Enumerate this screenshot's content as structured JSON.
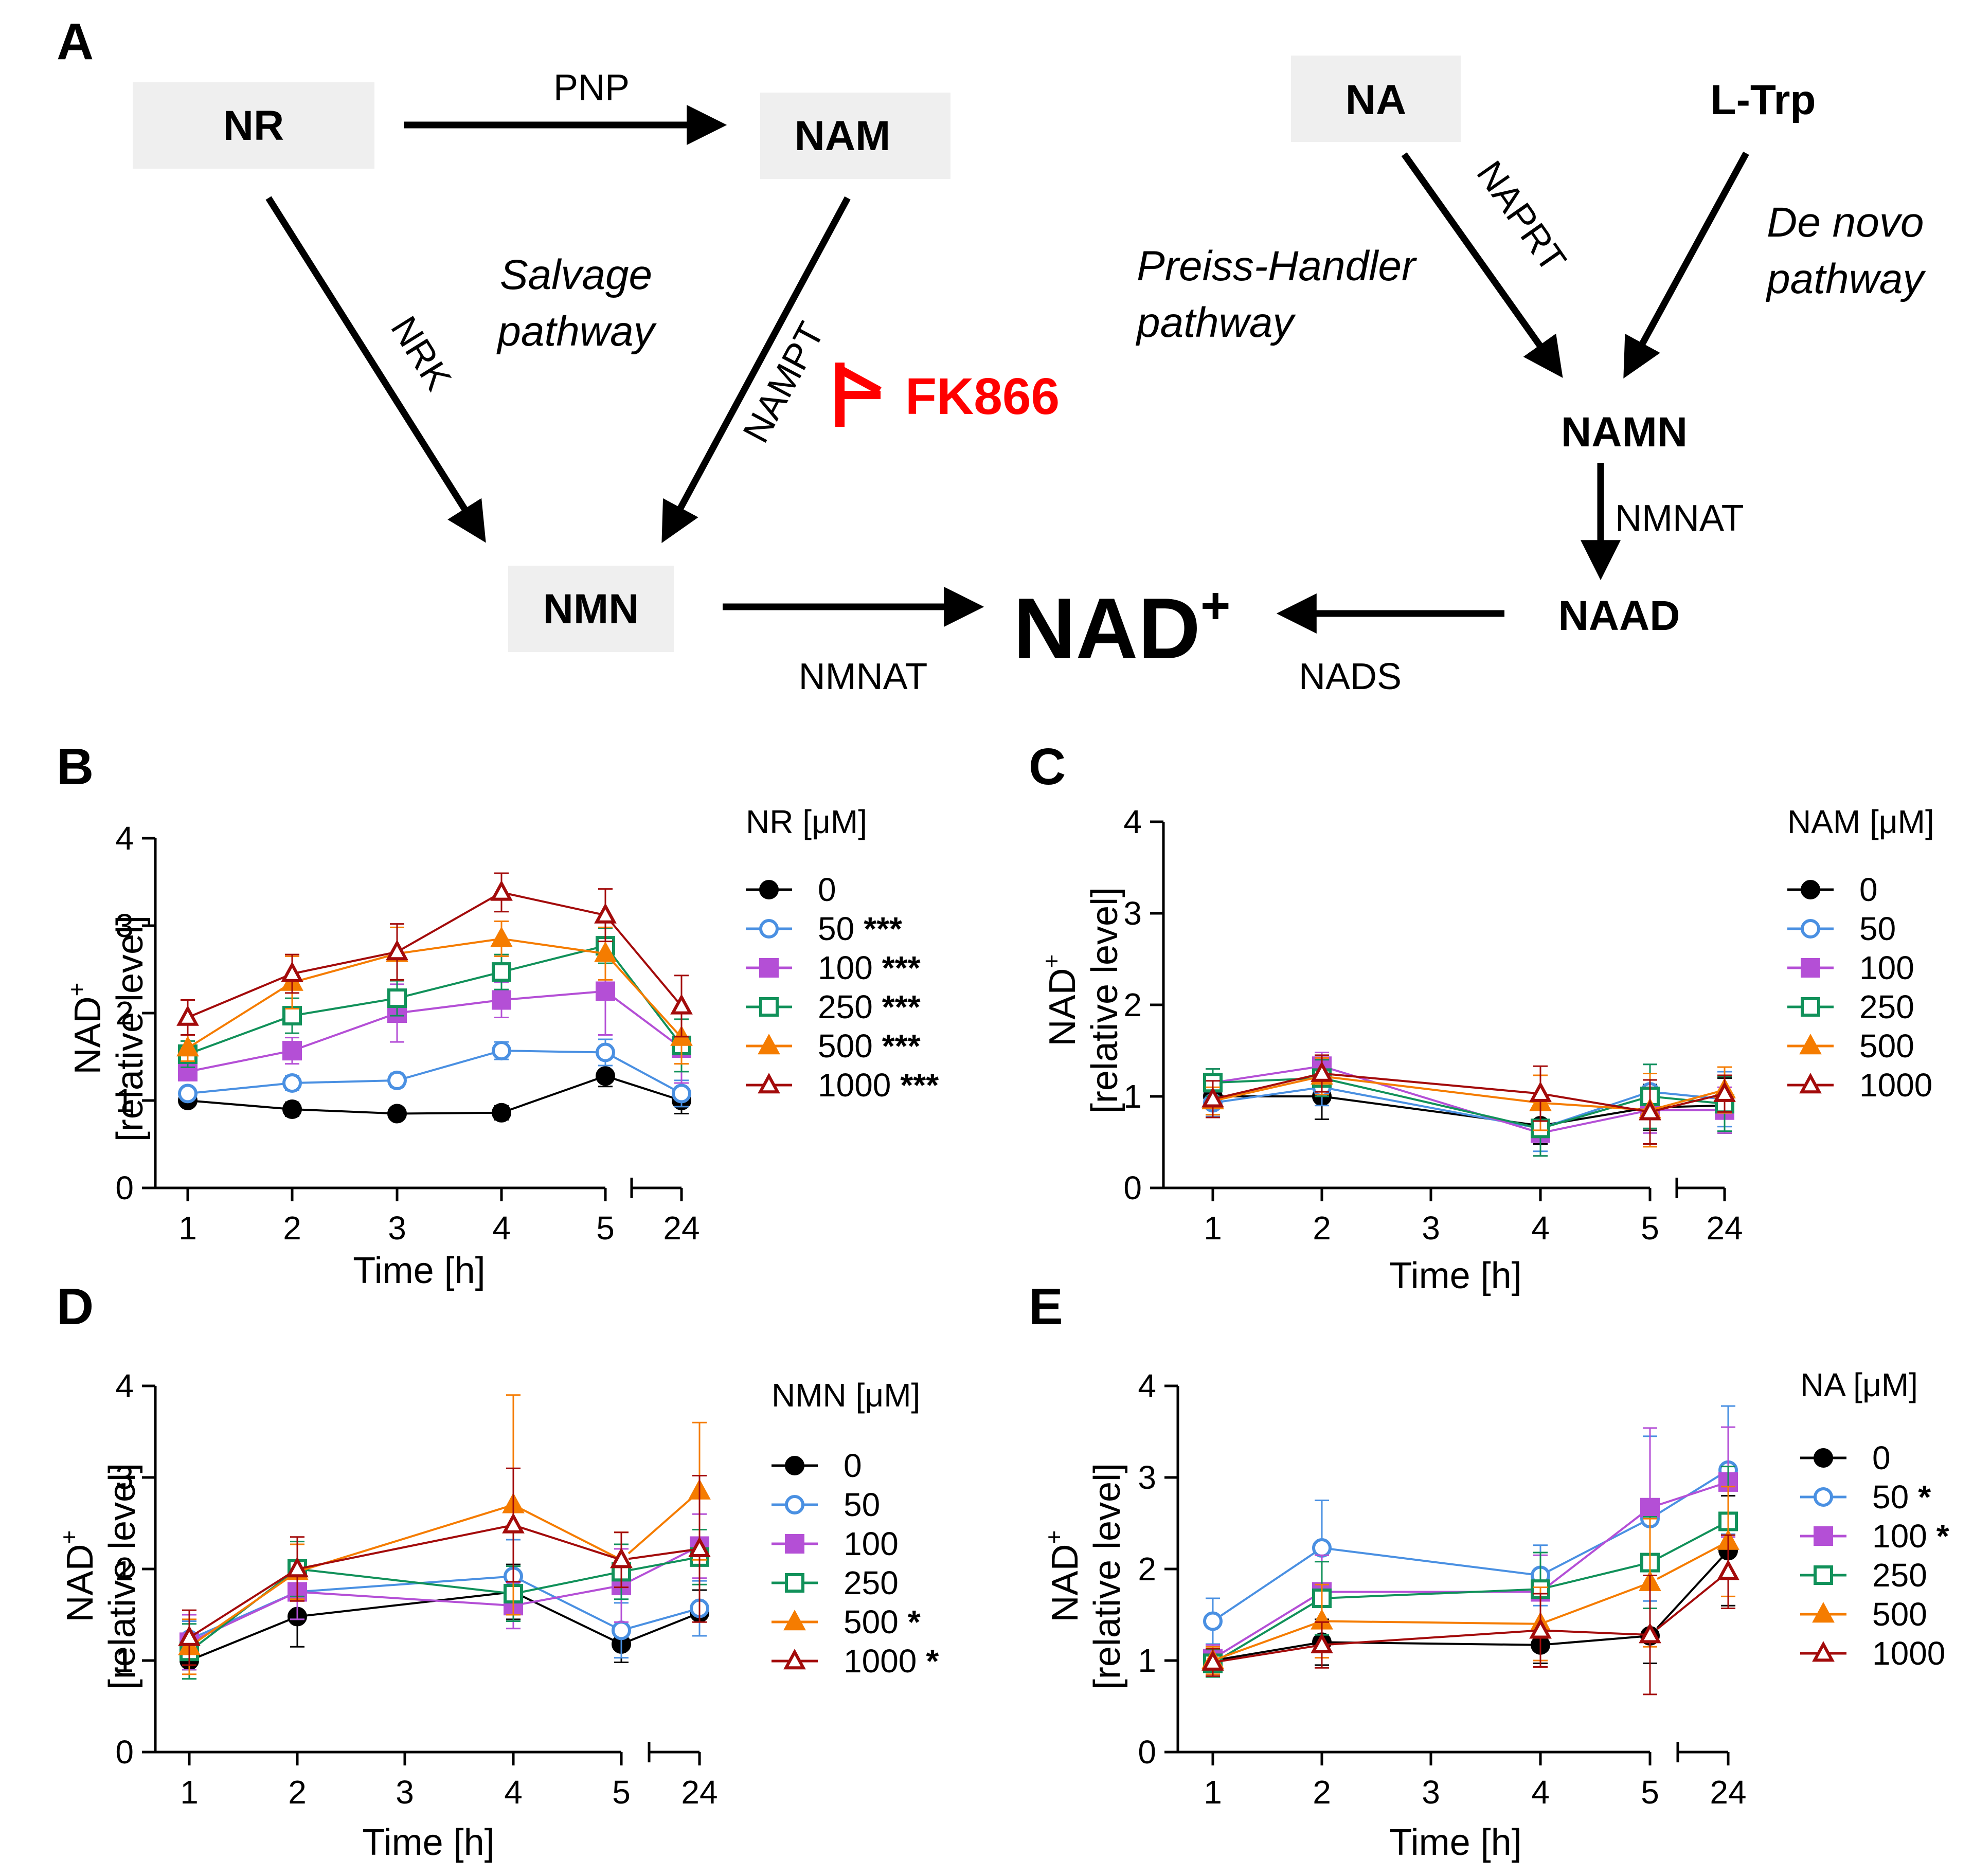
{
  "pathway": {
    "panel_label": "A",
    "nodes": {
      "nr": "NR",
      "nam": "NAM",
      "na": "NA",
      "ltrp": "L-Trp",
      "nmn": "NMN",
      "namn": "NAMN",
      "naad": "NAAD",
      "nad": "NAD",
      "nad_sup": "+"
    },
    "enzymes": {
      "pnp": "PNP",
      "nrk": "NRK",
      "nampt": "NAMPT",
      "naprt": "NAPRT",
      "nmnat_right": "NMNAT",
      "nmnat_bottom": "NMNAT",
      "nads": "NADS"
    },
    "pathway_labels": {
      "salvage_1": "Salvage",
      "salvage_2": "pathway",
      "preiss_1": "Preiss-Handler",
      "preiss_2": "pathway",
      "denovo_1": "De novo",
      "denovo_2": "pathway"
    },
    "inhibitor": "FK866",
    "colors": {
      "inhibitor": "#ff0000",
      "node_box": "#efefef",
      "arrow": "#000000"
    }
  },
  "chart_data": [
    {
      "panel": "B",
      "type": "line",
      "legend_title": "NR [μM]",
      "xlabel": "Time [h]",
      "ylabel_line1": "NAD",
      "ylabel_sup": "+",
      "ylabel_line2": "[relative level]",
      "x_ticks": [
        "1",
        "2",
        "3",
        "4",
        "5",
        "24"
      ],
      "y_ticks": [
        "0",
        "1",
        "2",
        "3",
        "4"
      ],
      "ylim": [
        0,
        4
      ],
      "x": [
        1,
        2,
        3,
        4,
        5,
        24
      ],
      "axis_break": "between 5 and 24",
      "series": [
        {
          "name": "0",
          "sig": "",
          "values": [
            1.0,
            0.9,
            0.85,
            0.86,
            1.28,
            1.0
          ],
          "err": [
            0.05,
            0.08,
            0.04,
            0.08,
            0.12,
            0.15
          ]
        },
        {
          "name": "50",
          "sig": "***",
          "values": [
            1.08,
            1.2,
            1.23,
            1.57,
            1.55,
            1.08
          ],
          "err": [
            0.06,
            0.08,
            0.08,
            0.1,
            0.15,
            0.15
          ]
        },
        {
          "name": "100",
          "sig": "***",
          "values": [
            1.33,
            1.57,
            2.0,
            2.15,
            2.25,
            1.6
          ],
          "err": [
            0.1,
            0.15,
            0.33,
            0.2,
            0.5,
            0.4
          ]
        },
        {
          "name": "250",
          "sig": "***",
          "values": [
            1.53,
            1.97,
            2.17,
            2.47,
            2.77,
            1.63
          ],
          "err": [
            0.15,
            0.2,
            0.2,
            0.2,
            0.2,
            0.3
          ]
        },
        {
          "name": "500",
          "sig": "***",
          "values": [
            1.6,
            2.35,
            2.68,
            2.85,
            2.68,
            1.72
          ],
          "err": [
            0.15,
            0.3,
            0.3,
            0.2,
            0.3,
            0.3
          ]
        },
        {
          "name": "1000",
          "sig": "***",
          "values": [
            1.95,
            2.45,
            2.7,
            3.38,
            3.12,
            2.08
          ],
          "err": [
            0.2,
            0.22,
            0.32,
            0.22,
            0.3,
            0.35
          ]
        }
      ]
    },
    {
      "panel": "C",
      "type": "line",
      "legend_title": "NAM [μM]",
      "xlabel": "Time [h]",
      "ylabel_line1": "NAD",
      "ylabel_sup": "+",
      "ylabel_line2": "[relative level]",
      "x_ticks": [
        "1",
        "2",
        "3",
        "4",
        "5",
        "24"
      ],
      "y_ticks": [
        "0",
        "1",
        "2",
        "3",
        "4"
      ],
      "ylim": [
        0,
        4
      ],
      "x": [
        1,
        2,
        4,
        5,
        24
      ],
      "axis_break": "between 5 and 24",
      "series": [
        {
          "name": "0",
          "sig": "",
          "values": [
            1.0,
            1.0,
            0.68,
            0.88,
            0.9
          ],
          "err": [
            0.1,
            0.25,
            0.2,
            0.25,
            0.3
          ]
        },
        {
          "name": "50",
          "sig": "",
          "values": [
            0.93,
            1.1,
            0.65,
            1.05,
            0.97
          ],
          "err": [
            0.15,
            0.2,
            0.25,
            0.3,
            0.3
          ]
        },
        {
          "name": "100",
          "sig": "",
          "values": [
            1.15,
            1.33,
            0.6,
            0.85,
            0.85
          ],
          "err": [
            0.15,
            0.15,
            0.25,
            0.25,
            0.25
          ]
        },
        {
          "name": "250",
          "sig": "",
          "values": [
            1.15,
            1.2,
            0.65,
            1.0,
            0.92
          ],
          "err": [
            0.15,
            0.2,
            0.3,
            0.35,
            0.3
          ]
        },
        {
          "name": "500",
          "sig": "",
          "values": [
            0.95,
            1.22,
            0.93,
            0.85,
            1.07
          ],
          "err": [
            0.15,
            0.2,
            0.3,
            0.4,
            0.25
          ]
        },
        {
          "name": "1000",
          "sig": "",
          "values": [
            0.97,
            1.25,
            1.03,
            0.83,
            1.03
          ],
          "err": [
            0.2,
            0.2,
            0.3,
            0.35,
            0.2
          ]
        }
      ]
    },
    {
      "panel": "D",
      "type": "line",
      "legend_title": "NMN [μM]",
      "xlabel": "Time [h]",
      "ylabel_line1": "NAD",
      "ylabel_sup": "+",
      "ylabel_line2": "[relative level]",
      "x_ticks": [
        "1",
        "2",
        "3",
        "4",
        "5",
        "24"
      ],
      "y_ticks": [
        "0",
        "1",
        "2",
        "3",
        "4"
      ],
      "ylim": [
        0,
        4
      ],
      "x": [
        1,
        2,
        4,
        5,
        24
      ],
      "axis_break": "between 5 and 24",
      "series": [
        {
          "name": "0",
          "sig": "",
          "values": [
            1.0,
            1.48,
            1.75,
            1.18,
            1.52
          ],
          "err": [
            0.1,
            0.33,
            0.3,
            0.2,
            0.25
          ]
        },
        {
          "name": "50",
          "sig": "",
          "values": [
            1.23,
            1.75,
            1.92,
            1.33,
            1.57
          ],
          "err": [
            0.2,
            0.3,
            0.4,
            0.3,
            0.3
          ]
        },
        {
          "name": "100",
          "sig": "",
          "values": [
            1.2,
            1.75,
            1.6,
            1.82,
            2.25
          ],
          "err": [
            0.3,
            0.3,
            0.25,
            0.4,
            0.35
          ]
        },
        {
          "name": "250",
          "sig": "",
          "values": [
            1.1,
            2.0,
            1.73,
            1.97,
            2.13
          ],
          "err": [
            0.3,
            0.3,
            0.3,
            0.3,
            0.3
          ]
        },
        {
          "name": "500",
          "sig": "*",
          "values": [
            1.15,
            1.97,
            2.7,
            2.1,
            2.85
          ],
          "err": [
            0.3,
            0.3,
            1.2,
            0.3,
            0.75
          ]
        },
        {
          "name": "1000",
          "sig": "*",
          "values": [
            1.25,
            2.0,
            2.48,
            2.1,
            2.22
          ],
          "err": [
            0.3,
            0.35,
            0.62,
            0.3,
            0.8
          ]
        }
      ]
    },
    {
      "panel": "E",
      "type": "line",
      "legend_title": "NA [μM]",
      "xlabel": "Time [h]",
      "ylabel_line1": "NAD",
      "ylabel_sup": "+",
      "ylabel_line2": "[relative level]",
      "x_ticks": [
        "1",
        "2",
        "3",
        "4",
        "5",
        "24"
      ],
      "y_ticks": [
        "0",
        "1",
        "2",
        "3",
        "4"
      ],
      "ylim": [
        0,
        4
      ],
      "x": [
        1,
        2,
        4,
        5,
        24
      ],
      "axis_break": "between 5 and 24",
      "series": [
        {
          "name": "0",
          "sig": "",
          "values": [
            1.0,
            1.2,
            1.17,
            1.27,
            2.2
          ],
          "err": [
            0.1,
            0.25,
            0.2,
            0.3,
            0.6
          ]
        },
        {
          "name": "50",
          "sig": "*",
          "values": [
            1.43,
            2.23,
            1.93,
            2.55,
            3.08
          ],
          "err": [
            0.25,
            0.52,
            0.33,
            0.9,
            0.7
          ]
        },
        {
          "name": "100",
          "sig": "*",
          "values": [
            1.02,
            1.75,
            1.75,
            2.67,
            2.95
          ],
          "err": [
            0.15,
            0.4,
            0.4,
            0.87,
            0.6
          ]
        },
        {
          "name": "250",
          "sig": "",
          "values": [
            0.97,
            1.68,
            1.78,
            2.07,
            2.52
          ],
          "err": [
            0.15,
            0.4,
            0.4,
            0.5,
            0.6
          ]
        },
        {
          "name": "500",
          "sig": "",
          "values": [
            1.0,
            1.43,
            1.4,
            1.85,
            2.3
          ],
          "err": [
            0.15,
            0.4,
            0.4,
            0.7,
            0.6
          ]
        },
        {
          "name": "1000",
          "sig": "",
          "values": [
            0.98,
            1.17,
            1.33,
            1.28,
            1.97
          ],
          "err": [
            0.15,
            0.25,
            0.4,
            0.65,
            0.4
          ]
        }
      ]
    }
  ],
  "series_styles": [
    {
      "color": "#000000",
      "marker": "circle",
      "fill": true
    },
    {
      "color": "#4a90e2",
      "marker": "circle",
      "fill": false
    },
    {
      "color": "#b44fd6",
      "marker": "square",
      "fill": true
    },
    {
      "color": "#11915a",
      "marker": "square",
      "fill": false
    },
    {
      "color": "#f57c00",
      "marker": "triangle",
      "fill": true
    },
    {
      "color": "#a30b0b",
      "marker": "triangle",
      "fill": false
    }
  ]
}
